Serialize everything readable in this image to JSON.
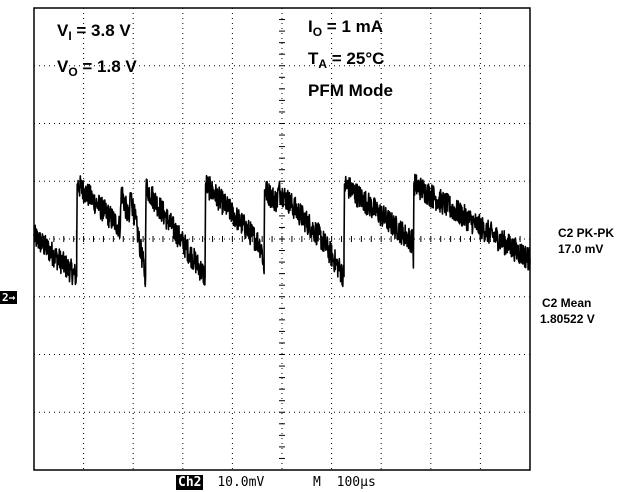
{
  "conditions": {
    "vi": {
      "sym": "V",
      "sub": "I",
      "rest": " = 3.8 V"
    },
    "vo": {
      "sym": "V",
      "sub": "O",
      "rest": " = 1.8 V"
    },
    "io": {
      "sym": "I",
      "sub": "O",
      "rest": " = 1 mA"
    },
    "ta": {
      "sym": "T",
      "sub": "A",
      "rest": " = 25°C"
    },
    "mode": "PFM Mode"
  },
  "measurements": {
    "pkpk_label": "C2 PK-PK",
    "pkpk_value": "17.0 mV",
    "mean_label": "C2 Mean",
    "mean_value": "1.80522 V"
  },
  "status": {
    "channel": "Ch2",
    "scale": "10.0mV",
    "time_label": "M",
    "timebase": "100µs",
    "marker": "2→"
  },
  "chart_data": {
    "type": "line",
    "xlabel": "",
    "ylabel": "",
    "x_unit": "µs",
    "y_unit": "mV",
    "xlim": [
      0,
      1000
    ],
    "ylim": [
      -40,
      40
    ],
    "x_divisions": 10,
    "y_divisions": 8,
    "grid": true,
    "series": [
      {
        "points": [
          [
            0,
            0.5
          ],
          [
            86,
            -6.5
          ],
          [
            86,
            1.5
          ],
          [
            86,
            -2.0
          ],
          [
            87,
            9.5
          ],
          [
            174,
            2.0
          ],
          [
            176,
            8.5
          ],
          [
            192,
            3.0
          ],
          [
            194,
            8.0
          ],
          [
            225,
            -6.5
          ],
          [
            225,
            0.0
          ],
          [
            226,
            9.0
          ],
          [
            345,
            -6.5
          ],
          [
            345,
            -4.0
          ],
          [
            346,
            9.5
          ],
          [
            452,
            -0.5
          ],
          [
            460,
            -2.0
          ],
          [
            464,
            -6.0
          ],
          [
            464,
            -3.0
          ],
          [
            465,
            8.5
          ],
          [
            490,
            6.5
          ],
          [
            493,
            8.5
          ],
          [
            580,
            0.0
          ],
          [
            625,
            -6.5
          ],
          [
            625,
            -2.0
          ],
          [
            626,
            9.5
          ],
          [
            764,
            -0.5
          ],
          [
            765,
            -5.0
          ],
          [
            766,
            9.5
          ],
          [
            1000,
            -3.5
          ]
        ]
      }
    ]
  }
}
